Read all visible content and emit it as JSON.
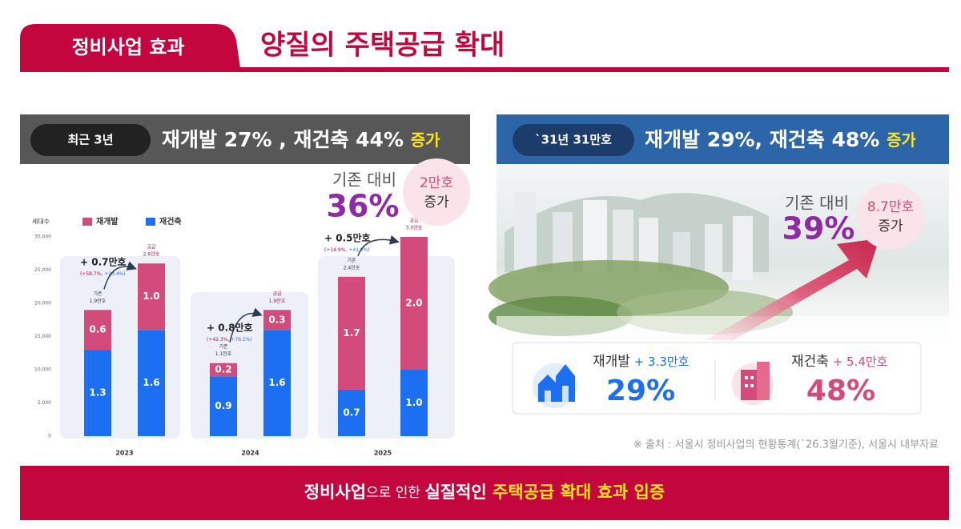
{
  "header": {
    "tab": "정비사업 효과",
    "title": "양질의 주택공급 확대"
  },
  "left": {
    "badge": "최근 3년",
    "headline": "재개발 27% , 재건축 44% ",
    "headline_suffix": "증가",
    "compare_label": "기존 대비",
    "compare_value": "36%",
    "bubble": [
      "2만호",
      "증가"
    ]
  },
  "chart_data": {
    "type": "bar",
    "stacked": true,
    "y_label": "세대수",
    "ylim": [
      0,
      30000
    ],
    "yticks": [
      0,
      {
        "value": 5000,
        "label": "5,000"
      },
      {
        "value": 10000,
        "label": "10,000"
      },
      {
        "value": 15000,
        "label": "15,000"
      },
      {
        "value": 20000,
        "label": "20,000"
      },
      {
        "value": 25000,
        "label": "25,000"
      },
      {
        "value": 30000,
        "label": "30,000"
      }
    ],
    "categories": [
      null,
      null,
      null,
      null,
      null,
      null
    ],
    "category_groups": [
      "2023",
      "2024",
      "2025"
    ],
    "series": [
      {
        "name": "재개발",
        "color": "#d24b7b",
        "values": [
          6000,
          10000,
          2000,
          3000,
          17000,
          20000
        ],
        "value_labels": [
          "0.6",
          "1.0",
          "0.2",
          "0.3",
          "1.7",
          "2.0"
        ]
      },
      {
        "name": "재건축",
        "color": "#1d6ff2",
        "values": [
          13000,
          16000,
          9000,
          16000,
          7000,
          10000
        ],
        "value_labels": [
          "1.3",
          "1.6",
          "0.9",
          "1.6",
          "0.7",
          "1.0"
        ]
      }
    ],
    "bar_annotations": [
      [
        "기존",
        "1.9만호"
      ],
      [
        "공급",
        "2.6만호"
      ],
      [
        "기존",
        "1.1만호"
      ],
      [
        "공급",
        "1.9만호"
      ],
      [
        "기존",
        "2.4만호"
      ],
      [
        "공급",
        "3.0만호"
      ]
    ],
    "increases": [
      {
        "text": "+ 0.7만호",
        "pct1": "(+58.7%,",
        "pct2": "+23.4%)"
      },
      {
        "text": "+ 0.8만호",
        "pct1": "(+42.3%,",
        "pct2": "+76.5%)"
      },
      {
        "text": "+ 0.5만호",
        "pct1": "(+14.9%,",
        "pct2": "+41.0%)"
      }
    ]
  },
  "right": {
    "badge": "`31년 31만호",
    "headline": "재개발 29%, 재건축 48% ",
    "headline_suffix": "증가",
    "compare_label": "기존 대비",
    "compare_value": "39%",
    "bubble": [
      "8.7만호",
      "증가"
    ],
    "stats": [
      {
        "label": "재개발",
        "delta": " + 3.3만호",
        "value": "29%"
      },
      {
        "label": "재건축",
        "delta": " + 5.4만호",
        "value": "48%"
      }
    ]
  },
  "source": "※ 출처 : 서울시 정비사업의 현황통계(`26.3월기준), 서울시 내부자료",
  "footer": [
    "정비사업",
    "으로 인한 ",
    "실질적인 ",
    "주택공급 확대 효과 입증"
  ]
}
